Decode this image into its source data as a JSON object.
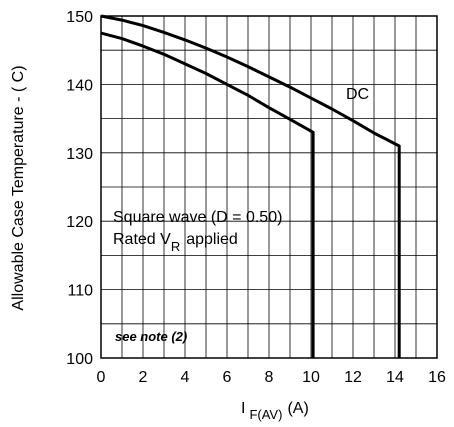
{
  "chart_data": {
    "type": "line",
    "title": "",
    "xlabel": {
      "prefix": "I",
      "subscript": "F(AV)",
      "suffix": "(A)"
    },
    "ylabel": "Allowable Case Temperature - ( C)",
    "xlim": [
      0,
      16
    ],
    "ylim": [
      100,
      150
    ],
    "xticks": [
      "0",
      "2",
      "4",
      "6",
      "8",
      "10",
      "12",
      "14",
      "16"
    ],
    "yticks": [
      "100",
      "110",
      "120",
      "130",
      "140",
      "150"
    ],
    "grid": true,
    "series": [
      {
        "name": "DC",
        "x": [
          0,
          1,
          2,
          3,
          4,
          5,
          6,
          7,
          8,
          9,
          10,
          11,
          12,
          13,
          14.2,
          14.2
        ],
        "y": [
          150,
          149.4,
          148.6,
          147.6,
          146.5,
          145.3,
          144.0,
          142.6,
          141.1,
          139.6,
          138.0,
          136.4,
          134.7,
          132.9,
          131,
          100
        ]
      },
      {
        "name": "Square wave (D = 0.50)",
        "x": [
          0,
          1,
          2,
          3,
          4,
          5,
          6,
          7,
          8,
          9,
          10.1,
          10.1
        ],
        "y": [
          147.5,
          146.7,
          145.6,
          144.4,
          143.0,
          141.6,
          140.0,
          138.4,
          136.6,
          134.9,
          133,
          100
        ]
      }
    ],
    "annotations": {
      "dc_label": "DC",
      "square_line1": "Square wave (D = 0.50)",
      "square_line2_prefix": "Rated V",
      "square_line2_sub": "R",
      "square_line2_suffix": "applied",
      "note": "see note (2)"
    }
  }
}
